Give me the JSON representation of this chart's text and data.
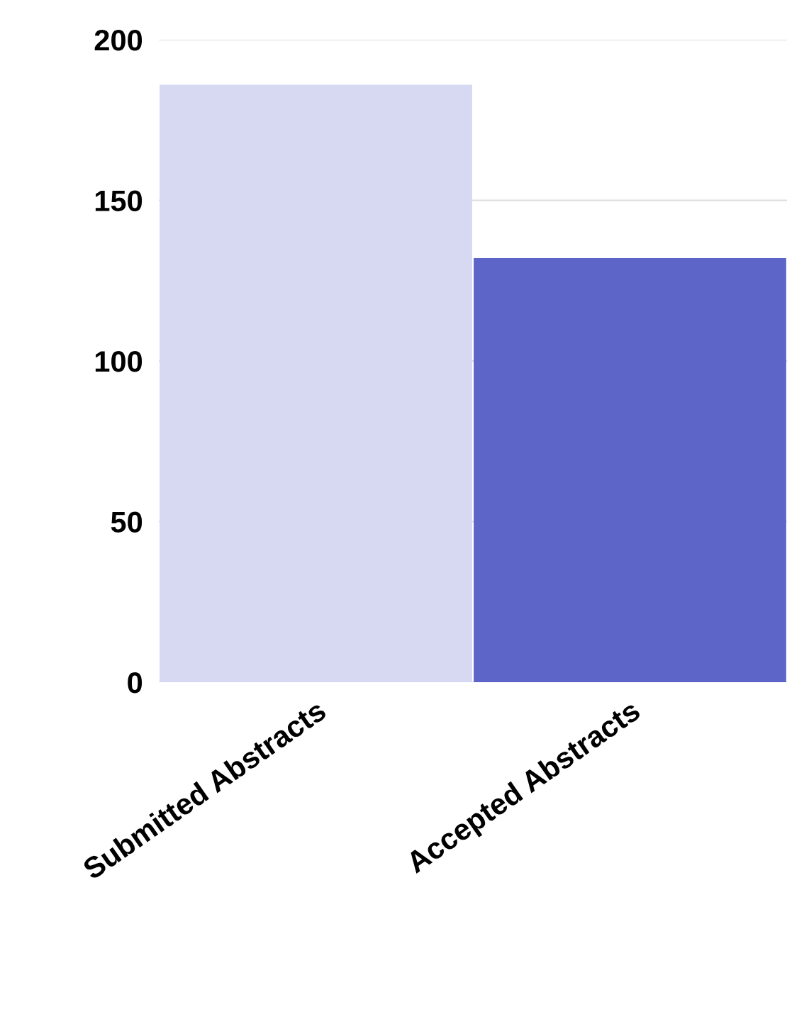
{
  "chart_data": {
    "type": "bar",
    "categories": [
      "Submitted Abstracts",
      "Accepted Abstracts"
    ],
    "values": [
      186,
      132
    ],
    "colors": [
      "#d7d8f2",
      "#5d65c8"
    ],
    "ylim": [
      0,
      200
    ],
    "yticks": [
      0,
      50,
      100,
      150,
      200
    ],
    "grid": "y"
  }
}
